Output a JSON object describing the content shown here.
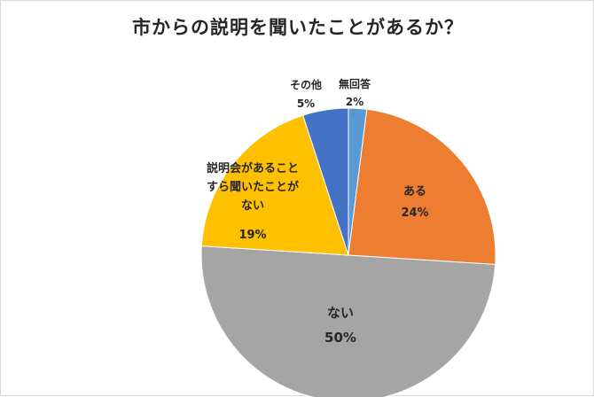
{
  "chart_data": {
    "type": "pie",
    "title": "市からの説明を聞いたことがあるか？",
    "start_angle_deg": 0,
    "direction": "clockwise",
    "slices": [
      {
        "label_lines": [
          "無回答"
        ],
        "value": 2,
        "value_label": "2%",
        "color": "#5b9bd5"
      },
      {
        "label_lines": [
          "ある"
        ],
        "value": 24,
        "value_label": "24%",
        "color": "#ed7d31"
      },
      {
        "label_lines": [
          "ない"
        ],
        "value": 50,
        "value_label": "50%",
        "color": "#a5a5a5"
      },
      {
        "label_lines": [
          "説明会があること",
          "すら聞いたことが",
          "ない"
        ],
        "value": 19,
        "value_label": "19%",
        "color": "#ffc000"
      },
      {
        "label_lines": [
          "その他"
        ],
        "value": 5,
        "value_label": "5%",
        "color": "#4472c4"
      }
    ]
  }
}
